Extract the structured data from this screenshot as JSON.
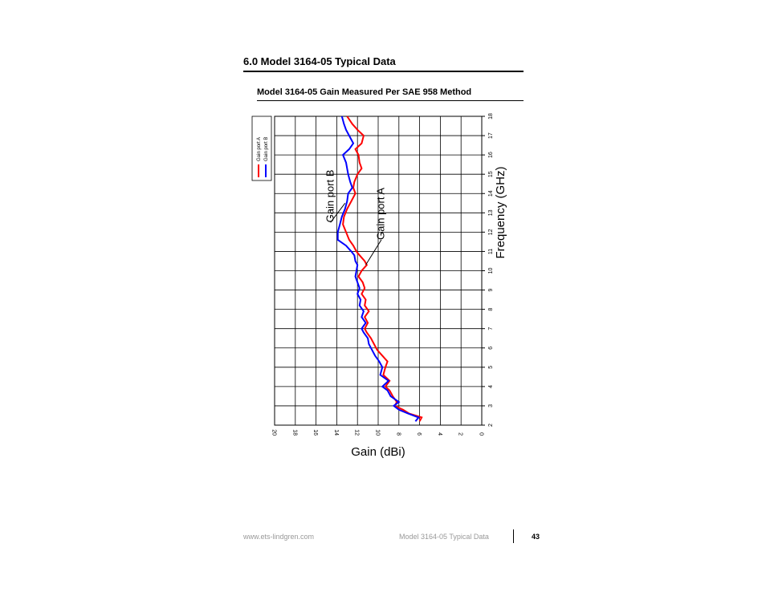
{
  "page": {
    "section_title": "6.0   Model 3164-05 Typical Data",
    "footer_url": "www.ets-lindgren.com",
    "footer_label": "Model 3164-05 Typical Data",
    "page_number": "43"
  },
  "chart_data": {
    "type": "line",
    "title": "Model 3164-05 Gain Measured Per SAE 958 Method",
    "xlabel": "Frequency (GHz)",
    "ylabel": "Gain (dBi)",
    "xlim": [
      2,
      18
    ],
    "ylim": [
      0,
      20
    ],
    "x_ticks": [
      2,
      3,
      4,
      5,
      6,
      7,
      8,
      9,
      10,
      11,
      12,
      13,
      14,
      15,
      16,
      17,
      18
    ],
    "y_ticks": [
      0,
      2,
      4,
      6,
      8,
      10,
      12,
      14,
      16,
      18,
      20
    ],
    "grid": true,
    "rotated": "counter-clockwise 90deg",
    "legend_position": "top-left",
    "series": [
      {
        "name": "Gain port A",
        "color": "#ff0000",
        "x": [
          2.2,
          2.4,
          2.6,
          2.8,
          3.0,
          3.2,
          3.5,
          3.8,
          4.0,
          4.3,
          4.6,
          5.0,
          5.3,
          5.6,
          5.9,
          6.2,
          6.5,
          6.8,
          7.0,
          7.3,
          7.6,
          7.9,
          8.2,
          8.5,
          8.8,
          9.1,
          9.4,
          9.7,
          10.0,
          10.3,
          10.5,
          10.8,
          11.0,
          11.3,
          11.6,
          12.0,
          12.4,
          12.8,
          13.2,
          13.6,
          14.0,
          14.3,
          14.6,
          15.0,
          15.3,
          15.6,
          16.0,
          16.3,
          16.6,
          17.0,
          17.3,
          17.6,
          18.0
        ],
        "y": [
          6.0,
          5.8,
          7.0,
          7.6,
          8.4,
          8.2,
          8.6,
          8.9,
          9.3,
          8.9,
          9.5,
          9.3,
          9.1,
          9.6,
          10.1,
          10.4,
          10.7,
          11.1,
          11.3,
          11.0,
          11.3,
          10.9,
          11.3,
          11.2,
          11.6,
          11.3,
          11.5,
          11.9,
          11.6,
          11.1,
          11.3,
          11.8,
          12.1,
          12.4,
          12.8,
          13.1,
          13.4,
          13.3,
          13.0,
          12.6,
          12.2,
          12.4,
          12.3,
          12.0,
          11.6,
          11.8,
          11.9,
          12.2,
          11.6,
          11.4,
          12.0,
          12.5,
          13.0
        ]
      },
      {
        "name": "Gain port B",
        "color": "#0000ff",
        "x": [
          2.2,
          2.4,
          2.6,
          2.8,
          3.0,
          3.2,
          3.5,
          3.8,
          4.0,
          4.3,
          4.6,
          5.0,
          5.3,
          5.6,
          5.9,
          6.2,
          6.5,
          6.8,
          7.0,
          7.3,
          7.6,
          7.9,
          8.2,
          8.5,
          8.8,
          9.1,
          9.4,
          9.7,
          10.0,
          10.3,
          10.5,
          10.8,
          11.0,
          11.3,
          11.6,
          12.0,
          12.4,
          12.8,
          13.2,
          13.6,
          14.0,
          14.3,
          14.6,
          15.0,
          15.3,
          15.6,
          16.0,
          16.3,
          16.6,
          17.0,
          17.3,
          17.6,
          18.0
        ],
        "y": [
          6.4,
          6.1,
          7.1,
          8.0,
          8.5,
          8.0,
          8.8,
          9.1,
          9.6,
          9.0,
          9.8,
          9.6,
          9.9,
          10.3,
          10.6,
          10.9,
          11.0,
          11.4,
          11.6,
          11.2,
          11.6,
          11.4,
          11.8,
          11.7,
          12.0,
          11.8,
          12.0,
          12.2,
          12.1,
          12.0,
          12.2,
          12.3,
          12.6,
          13.1,
          13.9,
          13.9,
          13.7,
          13.5,
          13.2,
          13.0,
          12.9,
          12.5,
          12.7,
          12.9,
          13.0,
          13.1,
          13.4,
          12.8,
          12.4,
          12.8,
          13.1,
          13.3,
          13.5
        ]
      }
    ],
    "annotations": [
      "Gain port B",
      "Gain port A"
    ]
  }
}
